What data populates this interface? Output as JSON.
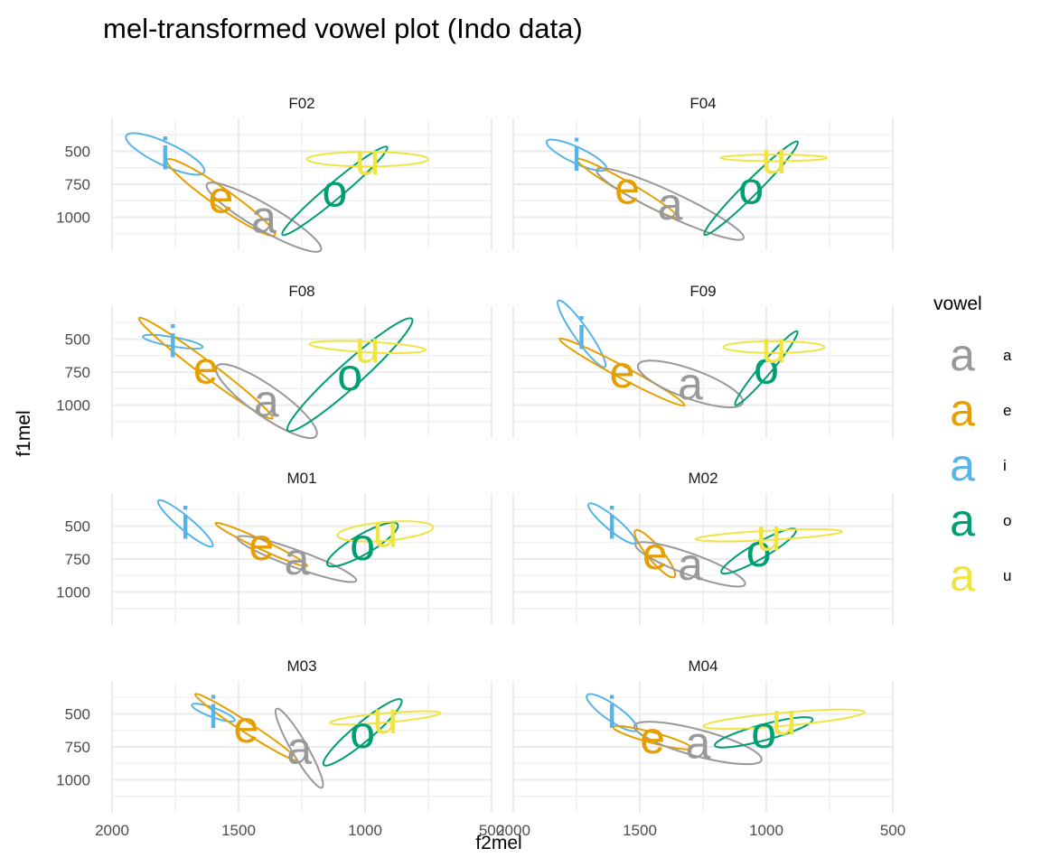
{
  "chart_data": {
    "type": "scatter",
    "title": "mel-transformed vowel plot (Indo data)",
    "xlabel": "f2mel",
    "ylabel": "f1mel",
    "x_reversed": true,
    "y_reversed": true,
    "xlim": [
      2000,
      500
    ],
    "ylim": [
      1250,
      250
    ],
    "x_ticks": [
      2000,
      1500,
      1000,
      500
    ],
    "x_tick_labels": [
      "2000",
      "1500",
      "1000",
      "500"
    ],
    "y_ticks": [
      500,
      750,
      1000
    ],
    "y_tick_labels": [
      "500",
      "750",
      "1000"
    ],
    "grid": true,
    "legend": {
      "title": "vowel",
      "position": "right",
      "key_glyph": "a",
      "entries": [
        {
          "label": "a",
          "color": "#999999"
        },
        {
          "label": "e",
          "color": "#E69F00"
        },
        {
          "label": "i",
          "color": "#56B4E9"
        },
        {
          "label": "o",
          "color": "#009E73"
        },
        {
          "label": "u",
          "color": "#F0E442"
        }
      ]
    },
    "panels": [
      {
        "name": "F02",
        "vowels": [
          {
            "v": "i",
            "f2": 1790,
            "f1": 520,
            "ell": {
              "rx": 170,
              "ry": 85,
              "angle": 25
            }
          },
          {
            "v": "e",
            "f2": 1570,
            "f1": 850,
            "ell": {
              "rx": 260,
              "ry": 70,
              "angle": 35
            }
          },
          {
            "v": "a",
            "f2": 1400,
            "f1": 1000,
            "ell": {
              "rx": 260,
              "ry": 95,
              "angle": 30
            }
          },
          {
            "v": "o",
            "f2": 1120,
            "f1": 800,
            "ell": {
              "rx": 270,
              "ry": 60,
              "angle": -40
            }
          },
          {
            "v": "u",
            "f2": 990,
            "f1": 560,
            "ell": {
              "rx": 240,
              "ry": 55,
              "angle": 0
            }
          }
        ]
      },
      {
        "name": "F04",
        "vowels": [
          {
            "v": "i",
            "f2": 1750,
            "f1": 530,
            "ell": {
              "rx": 130,
              "ry": 60,
              "angle": 25
            }
          },
          {
            "v": "e",
            "f2": 1550,
            "f1": 780,
            "ell": {
              "rx": 230,
              "ry": 45,
              "angle": 30
            }
          },
          {
            "v": "a",
            "f2": 1380,
            "f1": 900,
            "ell": {
              "rx": 320,
              "ry": 90,
              "angle": 25
            }
          },
          {
            "v": "o",
            "f2": 1060,
            "f1": 780,
            "ell": {
              "rx": 260,
              "ry": 55,
              "angle": -45
            }
          },
          {
            "v": "u",
            "f2": 970,
            "f1": 550,
            "ell": {
              "rx": 210,
              "ry": 25,
              "angle": 0
            }
          }
        ]
      },
      {
        "name": "F08",
        "vowels": [
          {
            "v": "i",
            "f2": 1760,
            "f1": 520,
            "ell": {
              "rx": 120,
              "ry": 35,
              "angle": 10
            }
          },
          {
            "v": "e",
            "f2": 1630,
            "f1": 720,
            "ell": {
              "rx": 330,
              "ry": 55,
              "angle": 37
            }
          },
          {
            "v": "a",
            "f2": 1390,
            "f1": 970,
            "ell": {
              "rx": 240,
              "ry": 115,
              "angle": 35
            }
          },
          {
            "v": "o",
            "f2": 1060,
            "f1": 770,
            "ell": {
              "rx": 330,
              "ry": 90,
              "angle": -42
            }
          },
          {
            "v": "u",
            "f2": 990,
            "f1": 560,
            "ell": {
              "rx": 230,
              "ry": 40,
              "angle": 3
            }
          }
        ]
      },
      {
        "name": "F09",
        "vowels": [
          {
            "v": "i",
            "f2": 1730,
            "f1": 460,
            "ell": {
              "rx": 160,
              "ry": 55,
              "angle": 55
            }
          },
          {
            "v": "e",
            "f2": 1570,
            "f1": 750,
            "ell": {
              "rx": 280,
              "ry": 45,
              "angle": 28
            }
          },
          {
            "v": "a",
            "f2": 1300,
            "f1": 840,
            "ell": {
              "rx": 220,
              "ry": 110,
              "angle": 20
            }
          },
          {
            "v": "o",
            "f2": 1000,
            "f1": 720,
            "ell": {
              "rx": 190,
              "ry": 45,
              "angle": -50
            }
          },
          {
            "v": "u",
            "f2": 970,
            "f1": 560,
            "ell": {
              "rx": 200,
              "ry": 45,
              "angle": 0
            }
          }
        ]
      },
      {
        "name": "M01",
        "vowels": [
          {
            "v": "i",
            "f2": 1710,
            "f1": 480,
            "ell": {
              "rx": 140,
              "ry": 50,
              "angle": 40
            }
          },
          {
            "v": "e",
            "f2": 1410,
            "f1": 640,
            "ell": {
              "rx": 200,
              "ry": 35,
              "angle": 25
            }
          },
          {
            "v": "a",
            "f2": 1270,
            "f1": 750,
            "ell": {
              "rx": 250,
              "ry": 65,
              "angle": 20
            }
          },
          {
            "v": "o",
            "f2": 1010,
            "f1": 640,
            "ell": {
              "rx": 160,
              "ry": 75,
              "angle": -30
            }
          },
          {
            "v": "u",
            "f2": 920,
            "f1": 540,
            "ell": {
              "rx": 190,
              "ry": 70,
              "angle": -5
            }
          }
        ]
      },
      {
        "name": "M02",
        "vowels": [
          {
            "v": "i",
            "f2": 1610,
            "f1": 480,
            "ell": {
              "rx": 120,
              "ry": 50,
              "angle": 40
            }
          },
          {
            "v": "e",
            "f2": 1440,
            "f1": 710,
            "ell": {
              "rx": 120,
              "ry": 55,
              "angle": 50
            }
          },
          {
            "v": "a",
            "f2": 1300,
            "f1": 790,
            "ell": {
              "rx": 230,
              "ry": 80,
              "angle": 20
            }
          },
          {
            "v": "o",
            "f2": 1030,
            "f1": 690,
            "ell": {
              "rx": 170,
              "ry": 60,
              "angle": -30
            }
          },
          {
            "v": "u",
            "f2": 990,
            "f1": 570,
            "ell": {
              "rx": 290,
              "ry": 35,
              "angle": -3
            }
          }
        ]
      },
      {
        "name": "M03",
        "vowels": [
          {
            "v": "i",
            "f2": 1600,
            "f1": 490,
            "ell": {
              "rx": 90,
              "ry": 35,
              "angle": 20
            }
          },
          {
            "v": "e",
            "f2": 1470,
            "f1": 600,
            "ell": {
              "rx": 240,
              "ry": 40,
              "angle": 33
            }
          },
          {
            "v": "a",
            "f2": 1260,
            "f1": 760,
            "ell": {
              "rx": 180,
              "ry": 60,
              "angle": 60
            }
          },
          {
            "v": "o",
            "f2": 1010,
            "f1": 640,
            "ell": {
              "rx": 200,
              "ry": 70,
              "angle": -40
            }
          },
          {
            "v": "u",
            "f2": 920,
            "f1": 530,
            "ell": {
              "rx": 220,
              "ry": 35,
              "angle": -5
            }
          }
        ]
      },
      {
        "name": "M04",
        "vowels": [
          {
            "v": "i",
            "f2": 1610,
            "f1": 490,
            "ell": {
              "rx": 120,
              "ry": 60,
              "angle": 35
            }
          },
          {
            "v": "e",
            "f2": 1450,
            "f1": 680,
            "ell": {
              "rx": 160,
              "ry": 40,
              "angle": 15
            }
          },
          {
            "v": "a",
            "f2": 1270,
            "f1": 720,
            "ell": {
              "rx": 260,
              "ry": 100,
              "angle": 15
            }
          },
          {
            "v": "o",
            "f2": 1010,
            "f1": 640,
            "ell": {
              "rx": 200,
              "ry": 60,
              "angle": -15
            }
          },
          {
            "v": "u",
            "f2": 930,
            "f1": 540,
            "ell": {
              "rx": 320,
              "ry": 50,
              "angle": -5
            }
          }
        ]
      }
    ]
  }
}
